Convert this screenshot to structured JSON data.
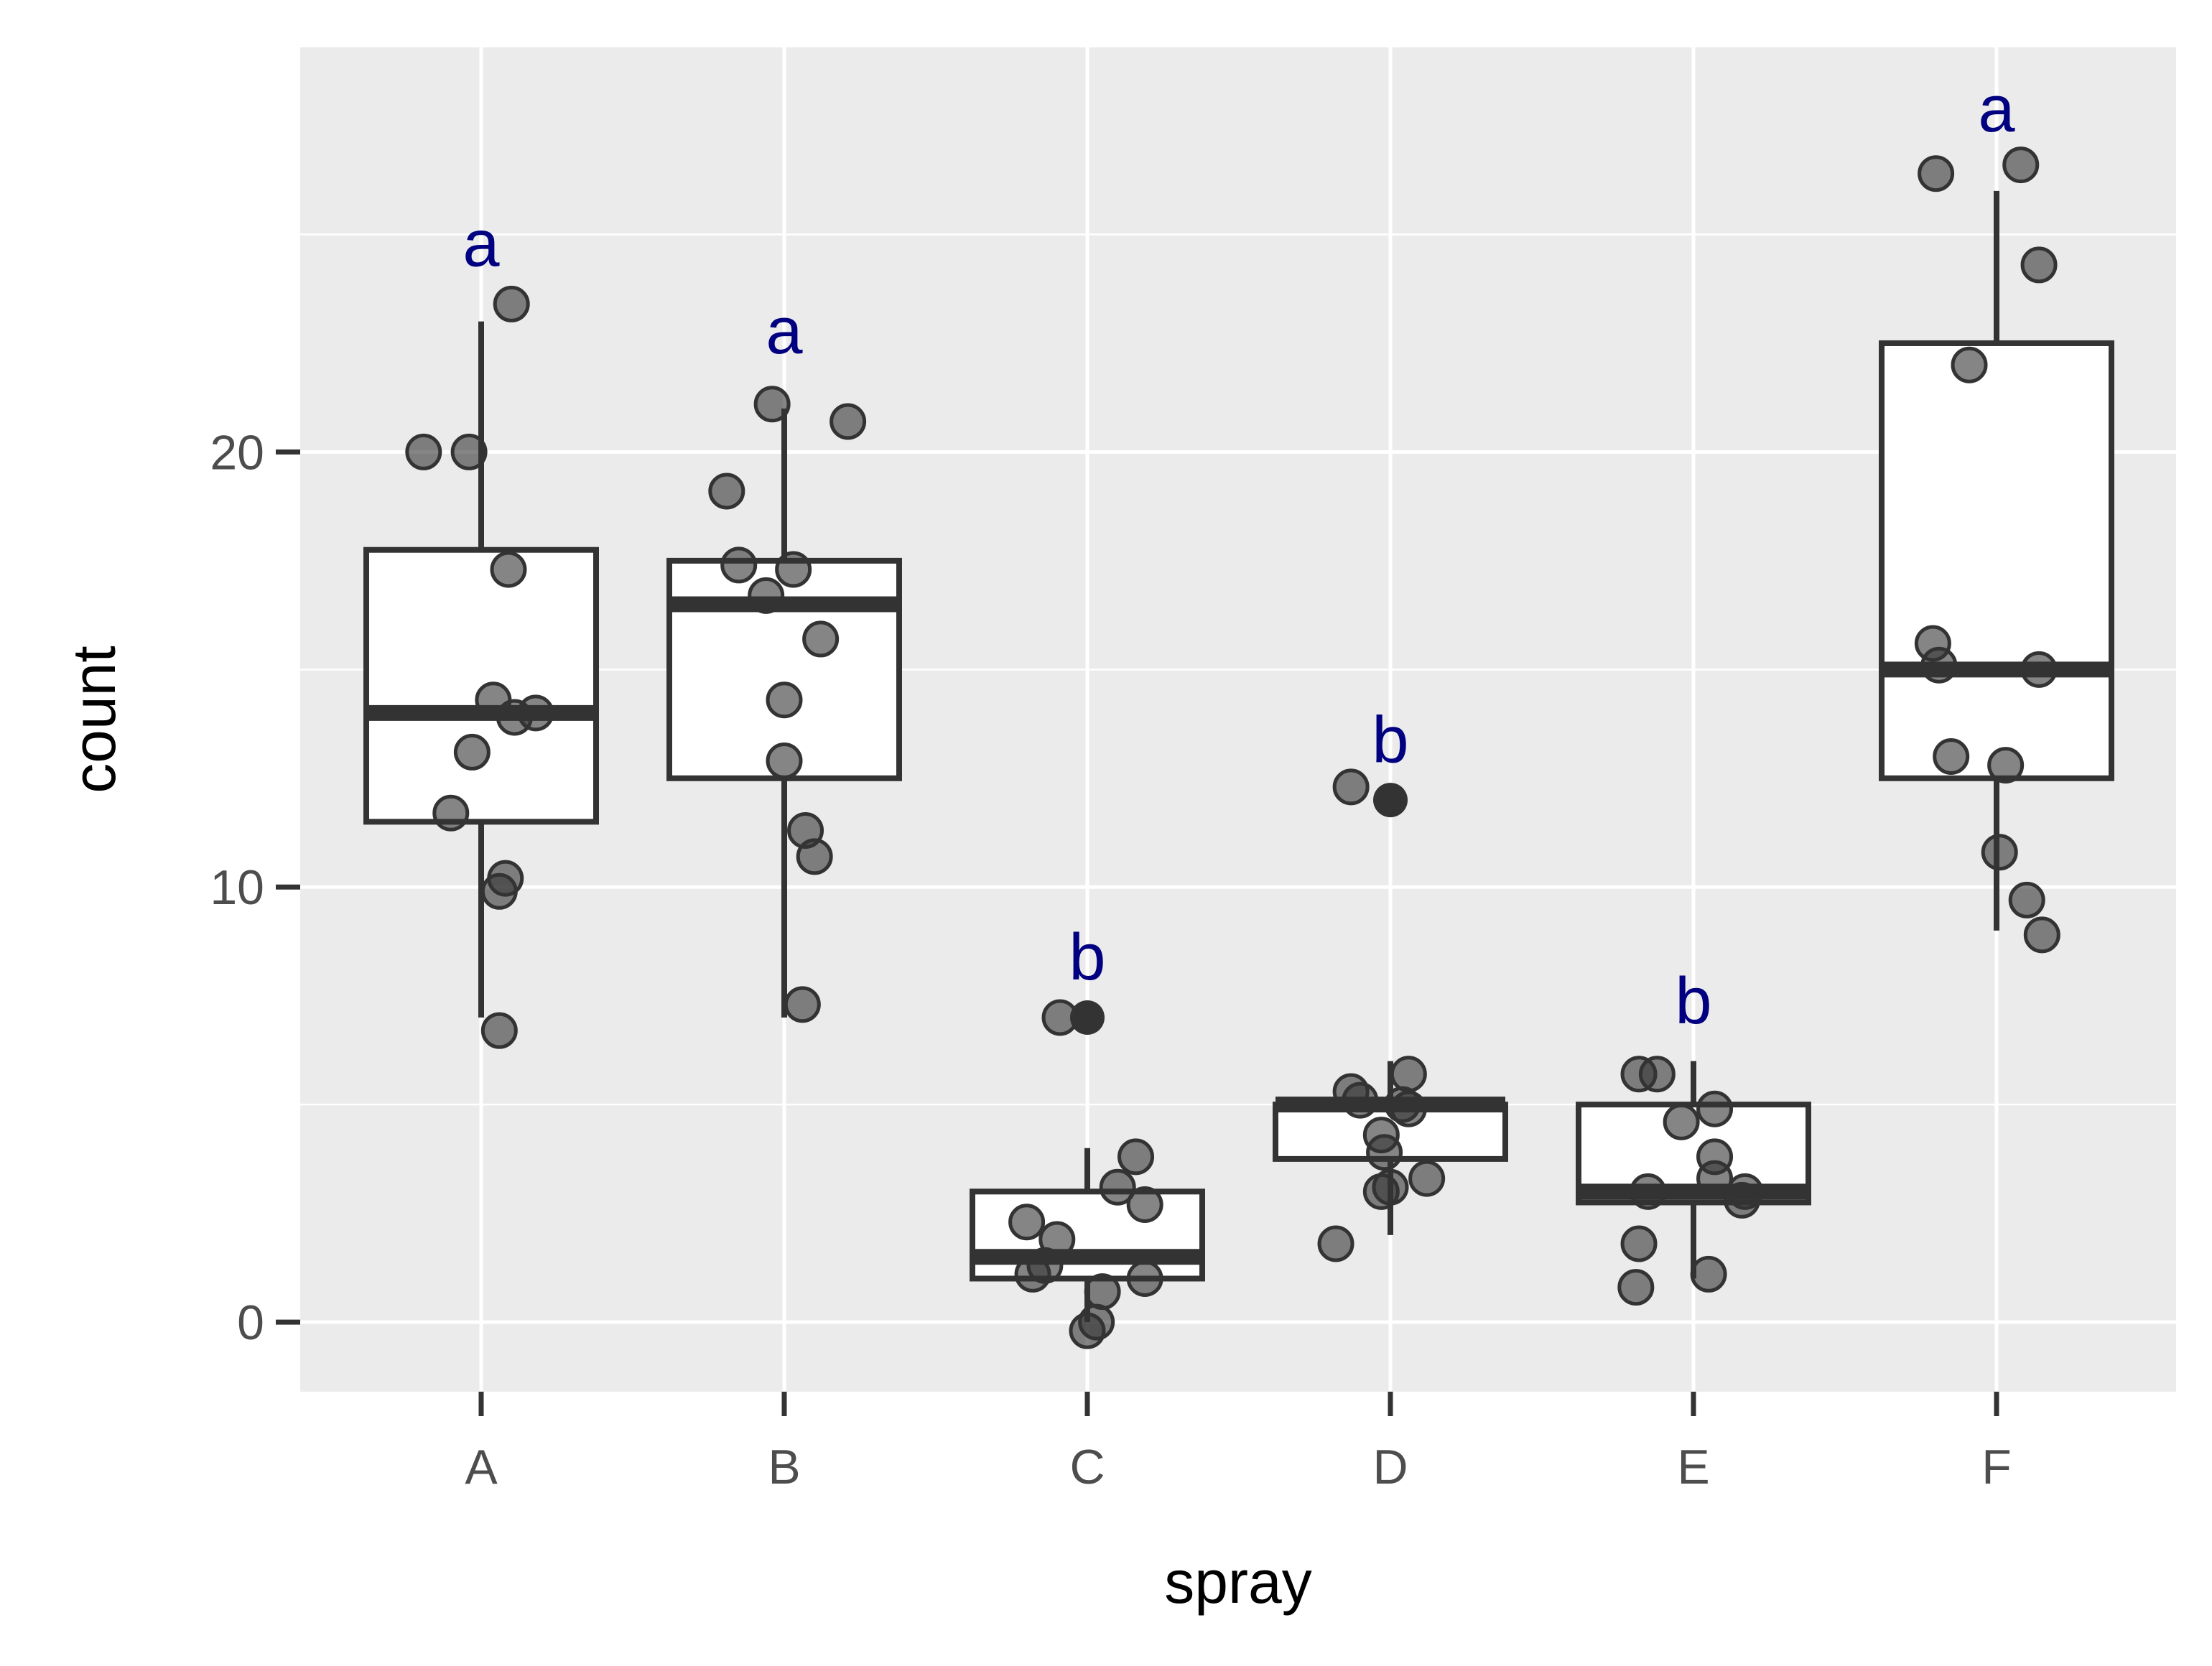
{
  "chart_data": {
    "type": "boxplot",
    "title": "",
    "xlabel": "spray",
    "ylabel": "count",
    "ylim": [
      -1.6,
      29.3
    ],
    "yticks": [
      0,
      10,
      20
    ],
    "categories": [
      "A",
      "B",
      "C",
      "D",
      "E",
      "F"
    ],
    "grid": true,
    "legend": "none",
    "colors": {
      "panel": "#ebebeb",
      "grid": "#ffffff",
      "box_stroke": "#333333",
      "box_fill": "#ffffff",
      "point": "#333333",
      "letter": "#000080",
      "tick": "#333333"
    },
    "boxes": [
      {
        "category": "A",
        "lower_whisker": 7,
        "q1": 11.5,
        "median": 14,
        "q3": 17.75,
        "upper_whisker": 23,
        "outliers": []
      },
      {
        "category": "B",
        "lower_whisker": 7,
        "q1": 12.5,
        "median": 16.5,
        "q3": 17.5,
        "upper_whisker": 21,
        "outliers": []
      },
      {
        "category": "C",
        "lower_whisker": 0,
        "q1": 1,
        "median": 1.5,
        "q3": 3,
        "upper_whisker": 4,
        "outliers": [
          7
        ]
      },
      {
        "category": "D",
        "lower_whisker": 2,
        "q1": 3.75,
        "median": 5,
        "q3": 5,
        "upper_whisker": 6,
        "outliers": [
          12
        ]
      },
      {
        "category": "E",
        "lower_whisker": 1,
        "q1": 2.75,
        "median": 3,
        "q3": 5,
        "upper_whisker": 6,
        "outliers": []
      },
      {
        "category": "F",
        "lower_whisker": 9,
        "q1": 12.5,
        "median": 15,
        "q3": 22.5,
        "upper_whisker": 26,
        "outliers": []
      }
    ],
    "points": [
      {
        "category": "A",
        "values": [
          20,
          20,
          17.3,
          14.3,
          13.9,
          14.0,
          13.1,
          11.7,
          10.2,
          9.9,
          6.7,
          23.4
        ],
        "jitter": [
          -0.19,
          -0.04,
          0.09,
          0.04,
          0.11,
          0.18,
          -0.03,
          -0.1,
          0.08,
          0.06,
          0.06,
          0.1
        ]
      },
      {
        "category": "B",
        "values": [
          21.1,
          20.7,
          19.1,
          17.4,
          17.3,
          16.7,
          15.7,
          14.3,
          12.9,
          11.3,
          10.7,
          7.3
        ],
        "jitter": [
          -0.04,
          0.21,
          -0.19,
          -0.15,
          0.03,
          -0.06,
          0.12,
          0.0,
          0.0,
          0.07,
          0.1,
          0.06
        ]
      },
      {
        "category": "C",
        "values": [
          7,
          3.8,
          3.1,
          2.7,
          2.3,
          1.9,
          1.3,
          1.1,
          1.0,
          0.7,
          0.0,
          -0.2
        ],
        "jitter": [
          -0.09,
          0.16,
          0.1,
          0.19,
          -0.2,
          -0.1,
          -0.14,
          -0.18,
          0.19,
          0.05,
          0.03,
          0.0
        ]
      },
      {
        "category": "D",
        "values": [
          12.3,
          5.7,
          5.3,
          5.1,
          4.9,
          5.0,
          4.3,
          3.9,
          3.1,
          3.3,
          3.0,
          1.8
        ],
        "jitter": [
          -0.13,
          0.06,
          -0.13,
          -0.1,
          0.06,
          0.04,
          -0.03,
          -0.02,
          0.0,
          0.12,
          -0.03,
          -0.18
        ]
      },
      {
        "category": "E",
        "values": [
          5.7,
          5.7,
          4.9,
          4.6,
          3.8,
          3.3,
          3.0,
          3.0,
          2.8,
          1.8,
          1.1,
          0.8
        ],
        "jitter": [
          -0.18,
          -0.12,
          0.07,
          -0.04,
          0.07,
          0.07,
          -0.15,
          0.17,
          0.16,
          -0.18,
          0.05,
          -0.19
        ]
      },
      {
        "category": "F",
        "values": [
          26.4,
          26.6,
          24.3,
          22.0,
          15.6,
          15.1,
          15.0,
          13.0,
          12.8,
          10.8,
          9.7,
          8.9
        ],
        "jitter": [
          -0.2,
          0.08,
          0.14,
          -0.09,
          -0.21,
          -0.19,
          0.14,
          -0.15,
          0.03,
          0.01,
          0.1,
          0.15
        ]
      }
    ],
    "annotations": [
      {
        "category": "A",
        "label": "a",
        "y": 24.8
      },
      {
        "category": "B",
        "label": "a",
        "y": 22.8
      },
      {
        "category": "C",
        "label": "b",
        "y": 8.4
      },
      {
        "category": "D",
        "label": "b",
        "y": 13.4
      },
      {
        "category": "E",
        "label": "b",
        "y": 7.4
      },
      {
        "category": "F",
        "label": "a",
        "y": 27.9
      }
    ]
  }
}
